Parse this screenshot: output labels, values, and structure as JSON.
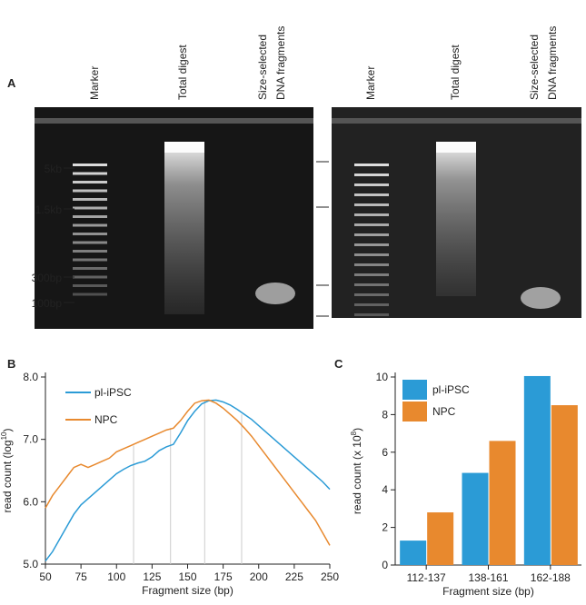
{
  "panel_labels": [
    "A",
    "B",
    "C"
  ],
  "gels": [
    {
      "lanes": [
        [
          "Marker"
        ],
        [
          "Total digest"
        ],
        [
          "Size-selected",
          "DNA fragments"
        ]
      ],
      "size_markers": [
        "5kb",
        "1.5kb",
        "300bp",
        "100bp"
      ]
    },
    {
      "lanes": [
        [
          "Marker"
        ],
        [
          "Total digest"
        ],
        [
          "Size-selected",
          "DNA fragments"
        ]
      ]
    }
  ],
  "chart_data": [
    {
      "type": "line",
      "xlabel": "Fragment size (bp)",
      "ylabel_parts": [
        "read count (log",
        "10",
        ")"
      ],
      "x": [
        50,
        55,
        60,
        65,
        70,
        75,
        80,
        85,
        90,
        95,
        100,
        105,
        110,
        115,
        120,
        125,
        130,
        135,
        140,
        145,
        150,
        155,
        160,
        165,
        170,
        175,
        180,
        185,
        190,
        195,
        200,
        205,
        210,
        215,
        220,
        225,
        230,
        235,
        240,
        245,
        250
      ],
      "series": [
        {
          "name": "pl-iPSC",
          "color": "#2b9bd6",
          "values": [
            5.05,
            5.2,
            5.4,
            5.6,
            5.8,
            5.95,
            6.05,
            6.15,
            6.25,
            6.35,
            6.45,
            6.52,
            6.58,
            6.62,
            6.65,
            6.72,
            6.82,
            6.88,
            6.92,
            7.1,
            7.3,
            7.45,
            7.57,
            7.62,
            7.63,
            7.6,
            7.55,
            7.48,
            7.4,
            7.32,
            7.22,
            7.12,
            7.02,
            6.92,
            6.82,
            6.72,
            6.62,
            6.52,
            6.42,
            6.32,
            6.2
          ]
        },
        {
          "name": "NPC",
          "color": "#e8892e",
          "values": [
            5.9,
            6.1,
            6.25,
            6.4,
            6.55,
            6.6,
            6.55,
            6.6,
            6.65,
            6.7,
            6.8,
            6.85,
            6.9,
            6.95,
            7.0,
            7.05,
            7.1,
            7.15,
            7.18,
            7.3,
            7.45,
            7.58,
            7.62,
            7.63,
            7.58,
            7.5,
            7.4,
            7.3,
            7.18,
            7.05,
            6.9,
            6.75,
            6.6,
            6.45,
            6.3,
            6.15,
            6.0,
            5.85,
            5.7,
            5.5,
            5.3
          ]
        }
      ],
      "xlim": [
        50,
        250
      ],
      "xticks": [
        50,
        75,
        100,
        125,
        150,
        175,
        200,
        225,
        250
      ],
      "ylim": [
        5,
        8
      ],
      "yticks": [
        {
          "value": 5,
          "label": "5.0"
        },
        {
          "value": 6,
          "label": "6.0"
        },
        {
          "value": 7,
          "label": "7.0"
        },
        {
          "value": 8,
          "label": "8.0"
        }
      ],
      "vlines": [
        112,
        138,
        162,
        188
      ],
      "vline_color": "#cccccc"
    },
    {
      "type": "bar",
      "xlabel": "Fragment size (bp)",
      "ylabel_parts": [
        "read count (x 10",
        "8",
        ")"
      ],
      "categories": [
        "112-137",
        "138-161",
        "162-188"
      ],
      "series": [
        {
          "name": "pl-iPSC",
          "color": "#2b9bd6",
          "values": [
            1.3,
            4.9,
            10.05
          ]
        },
        {
          "name": "NPC",
          "color": "#e8892e",
          "values": [
            2.8,
            6.6,
            8.5
          ]
        }
      ],
      "ylim": [
        0,
        10
      ],
      "yticks": [
        0,
        2,
        4,
        6,
        8,
        10
      ]
    }
  ]
}
